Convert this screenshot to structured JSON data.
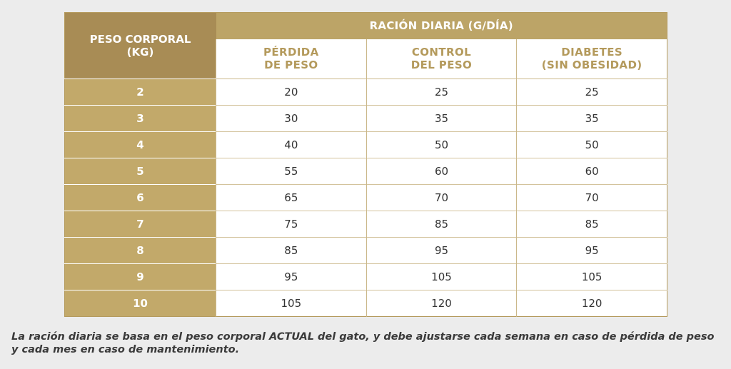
{
  "table": {
    "weight_header_line1": "PESO CORPORAL",
    "weight_header_line2": "(KG)",
    "group_header": "RACIÓN DIARIA (G/DÍA)",
    "columns": [
      {
        "line1": "PÉRDIDA",
        "line2": "DE PESO"
      },
      {
        "line1": "CONTROL",
        "line2": "DEL PESO"
      },
      {
        "line1": "DIABETES",
        "line2": "(SIN OBESIDAD)"
      }
    ],
    "rows": [
      {
        "weight": "2",
        "values": [
          "20",
          "25",
          "25"
        ]
      },
      {
        "weight": "3",
        "values": [
          "30",
          "35",
          "35"
        ]
      },
      {
        "weight": "4",
        "values": [
          "40",
          "50",
          "50"
        ]
      },
      {
        "weight": "5",
        "values": [
          "55",
          "60",
          "60"
        ]
      },
      {
        "weight": "6",
        "values": [
          "65",
          "70",
          "70"
        ]
      },
      {
        "weight": "7",
        "values": [
          "75",
          "85",
          "85"
        ]
      },
      {
        "weight": "8",
        "values": [
          "85",
          "95",
          "95"
        ]
      },
      {
        "weight": "9",
        "values": [
          "95",
          "105",
          "105"
        ]
      },
      {
        "weight": "10",
        "values": [
          "105",
          "120",
          "120"
        ]
      }
    ]
  },
  "footnote": "La ración diaria se basa en el peso corporal ACTUAL del gato, y debe ajustarse cada semana en caso de pérdida de peso y cada mes en caso de mantenimiento.",
  "colors": {
    "header_dark": "#a88c55",
    "header_light": "#bca467",
    "row_header": "#c2a96a",
    "subheader_text": "#b49a5c",
    "background": "#ececec"
  }
}
